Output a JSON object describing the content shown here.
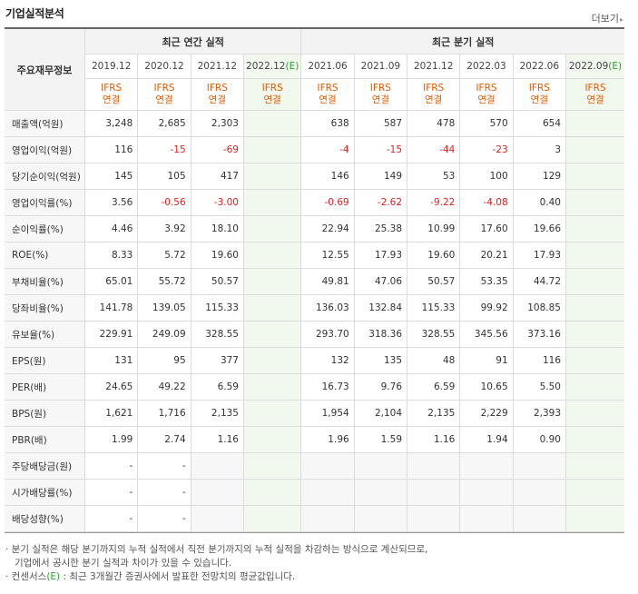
{
  "title": "기업실적분석",
  "more_label": "더보기",
  "header": {
    "label": "주요재무정보",
    "annual_group": "최근 연간 실적",
    "quarterly_group": "최근 분기 실적",
    "annual_periods": [
      "2019.12",
      "2020.12",
      "2021.12",
      "2022.12"
    ],
    "quarterly_periods": [
      "2021.06",
      "2021.09",
      "2021.12",
      "2022.03",
      "2022.06",
      "2022.09"
    ],
    "estimate_mark": "(E)",
    "basis_line1": "IFRS",
    "basis_line2": "연결"
  },
  "rows": [
    {
      "label": "매출액(억원)",
      "values": [
        "3,248",
        "2,685",
        "2,303",
        "",
        "638",
        "587",
        "478",
        "570",
        "654",
        ""
      ]
    },
    {
      "label": "영업이익(억원)",
      "values": [
        "116",
        "-15",
        "-69",
        "",
        "-4",
        "-15",
        "-44",
        "-23",
        "3",
        ""
      ]
    },
    {
      "label": "당기순이익(억원)",
      "values": [
        "145",
        "105",
        "417",
        "",
        "146",
        "149",
        "53",
        "100",
        "129",
        ""
      ]
    },
    {
      "label": "영업이익률(%)",
      "values": [
        "3.56",
        "-0.56",
        "-3.00",
        "",
        "-0.69",
        "-2.62",
        "-9.22",
        "-4.08",
        "0.40",
        ""
      ]
    },
    {
      "label": "순이익률(%)",
      "values": [
        "4.46",
        "3.92",
        "18.10",
        "",
        "22.94",
        "25.38",
        "10.99",
        "17.60",
        "19.66",
        ""
      ]
    },
    {
      "label": "ROE(%)",
      "values": [
        "8.33",
        "5.72",
        "19.60",
        "",
        "12.55",
        "17.93",
        "19.60",
        "20.21",
        "17.93",
        ""
      ]
    },
    {
      "label": "부채비율(%)",
      "values": [
        "65.01",
        "55.72",
        "50.57",
        "",
        "49.81",
        "47.06",
        "50.57",
        "53.35",
        "44.72",
        ""
      ]
    },
    {
      "label": "당좌비율(%)",
      "values": [
        "141.78",
        "139.05",
        "115.33",
        "",
        "136.03",
        "132.84",
        "115.33",
        "99.92",
        "108.85",
        ""
      ]
    },
    {
      "label": "유보율(%)",
      "values": [
        "229.91",
        "249.09",
        "328.55",
        "",
        "293.70",
        "318.36",
        "328.55",
        "345.56",
        "373.16",
        ""
      ]
    },
    {
      "label": "EPS(원)",
      "values": [
        "131",
        "95",
        "377",
        "",
        "132",
        "135",
        "48",
        "91",
        "116",
        ""
      ]
    },
    {
      "label": "PER(배)",
      "values": [
        "24.65",
        "49.22",
        "6.59",
        "",
        "16.73",
        "9.76",
        "6.59",
        "10.65",
        "5.50",
        ""
      ]
    },
    {
      "label": "BPS(원)",
      "values": [
        "1,621",
        "1,716",
        "2,135",
        "",
        "1,954",
        "2,104",
        "2,135",
        "2,229",
        "2,393",
        ""
      ]
    },
    {
      "label": "PBR(배)",
      "values": [
        "1.99",
        "2.74",
        "1.16",
        "",
        "1.96",
        "1.59",
        "1.16",
        "1.94",
        "0.90",
        ""
      ]
    },
    {
      "label": "주당배당금(원)",
      "values": [
        "-",
        "-",
        "",
        "",
        "",
        "",
        "",
        "",
        "",
        ""
      ]
    },
    {
      "label": "시가배당률(%)",
      "values": [
        "-",
        "-",
        "",
        "",
        "",
        "",
        "",
        "",
        "",
        ""
      ]
    },
    {
      "label": "배당성향(%)",
      "values": [
        "-",
        "-",
        "",
        "",
        "",
        "",
        "",
        "",
        "",
        ""
      ]
    }
  ],
  "notes": {
    "note1_line1": "· 분기 실적은 해당 분기까지의 누적 실적에서 직전 분기까지의 누적 실적을 차감하는 방식으로 계산되므로,",
    "note1_line2": "기업에서 공시한 분기 실적과 차이가 있을 수 있습니다.",
    "note2_prefix": "· 컨센서스",
    "note2_mark": "(E)",
    "note2_suffix": " : 최근 3개월간 증권사에서 발표한 전망치의 평균값입니다."
  },
  "colors": {
    "negative": "#e02020",
    "basis": "#e05a00",
    "estimate": "#2aa32a",
    "estimate_bg": "#f1f8ee"
  }
}
